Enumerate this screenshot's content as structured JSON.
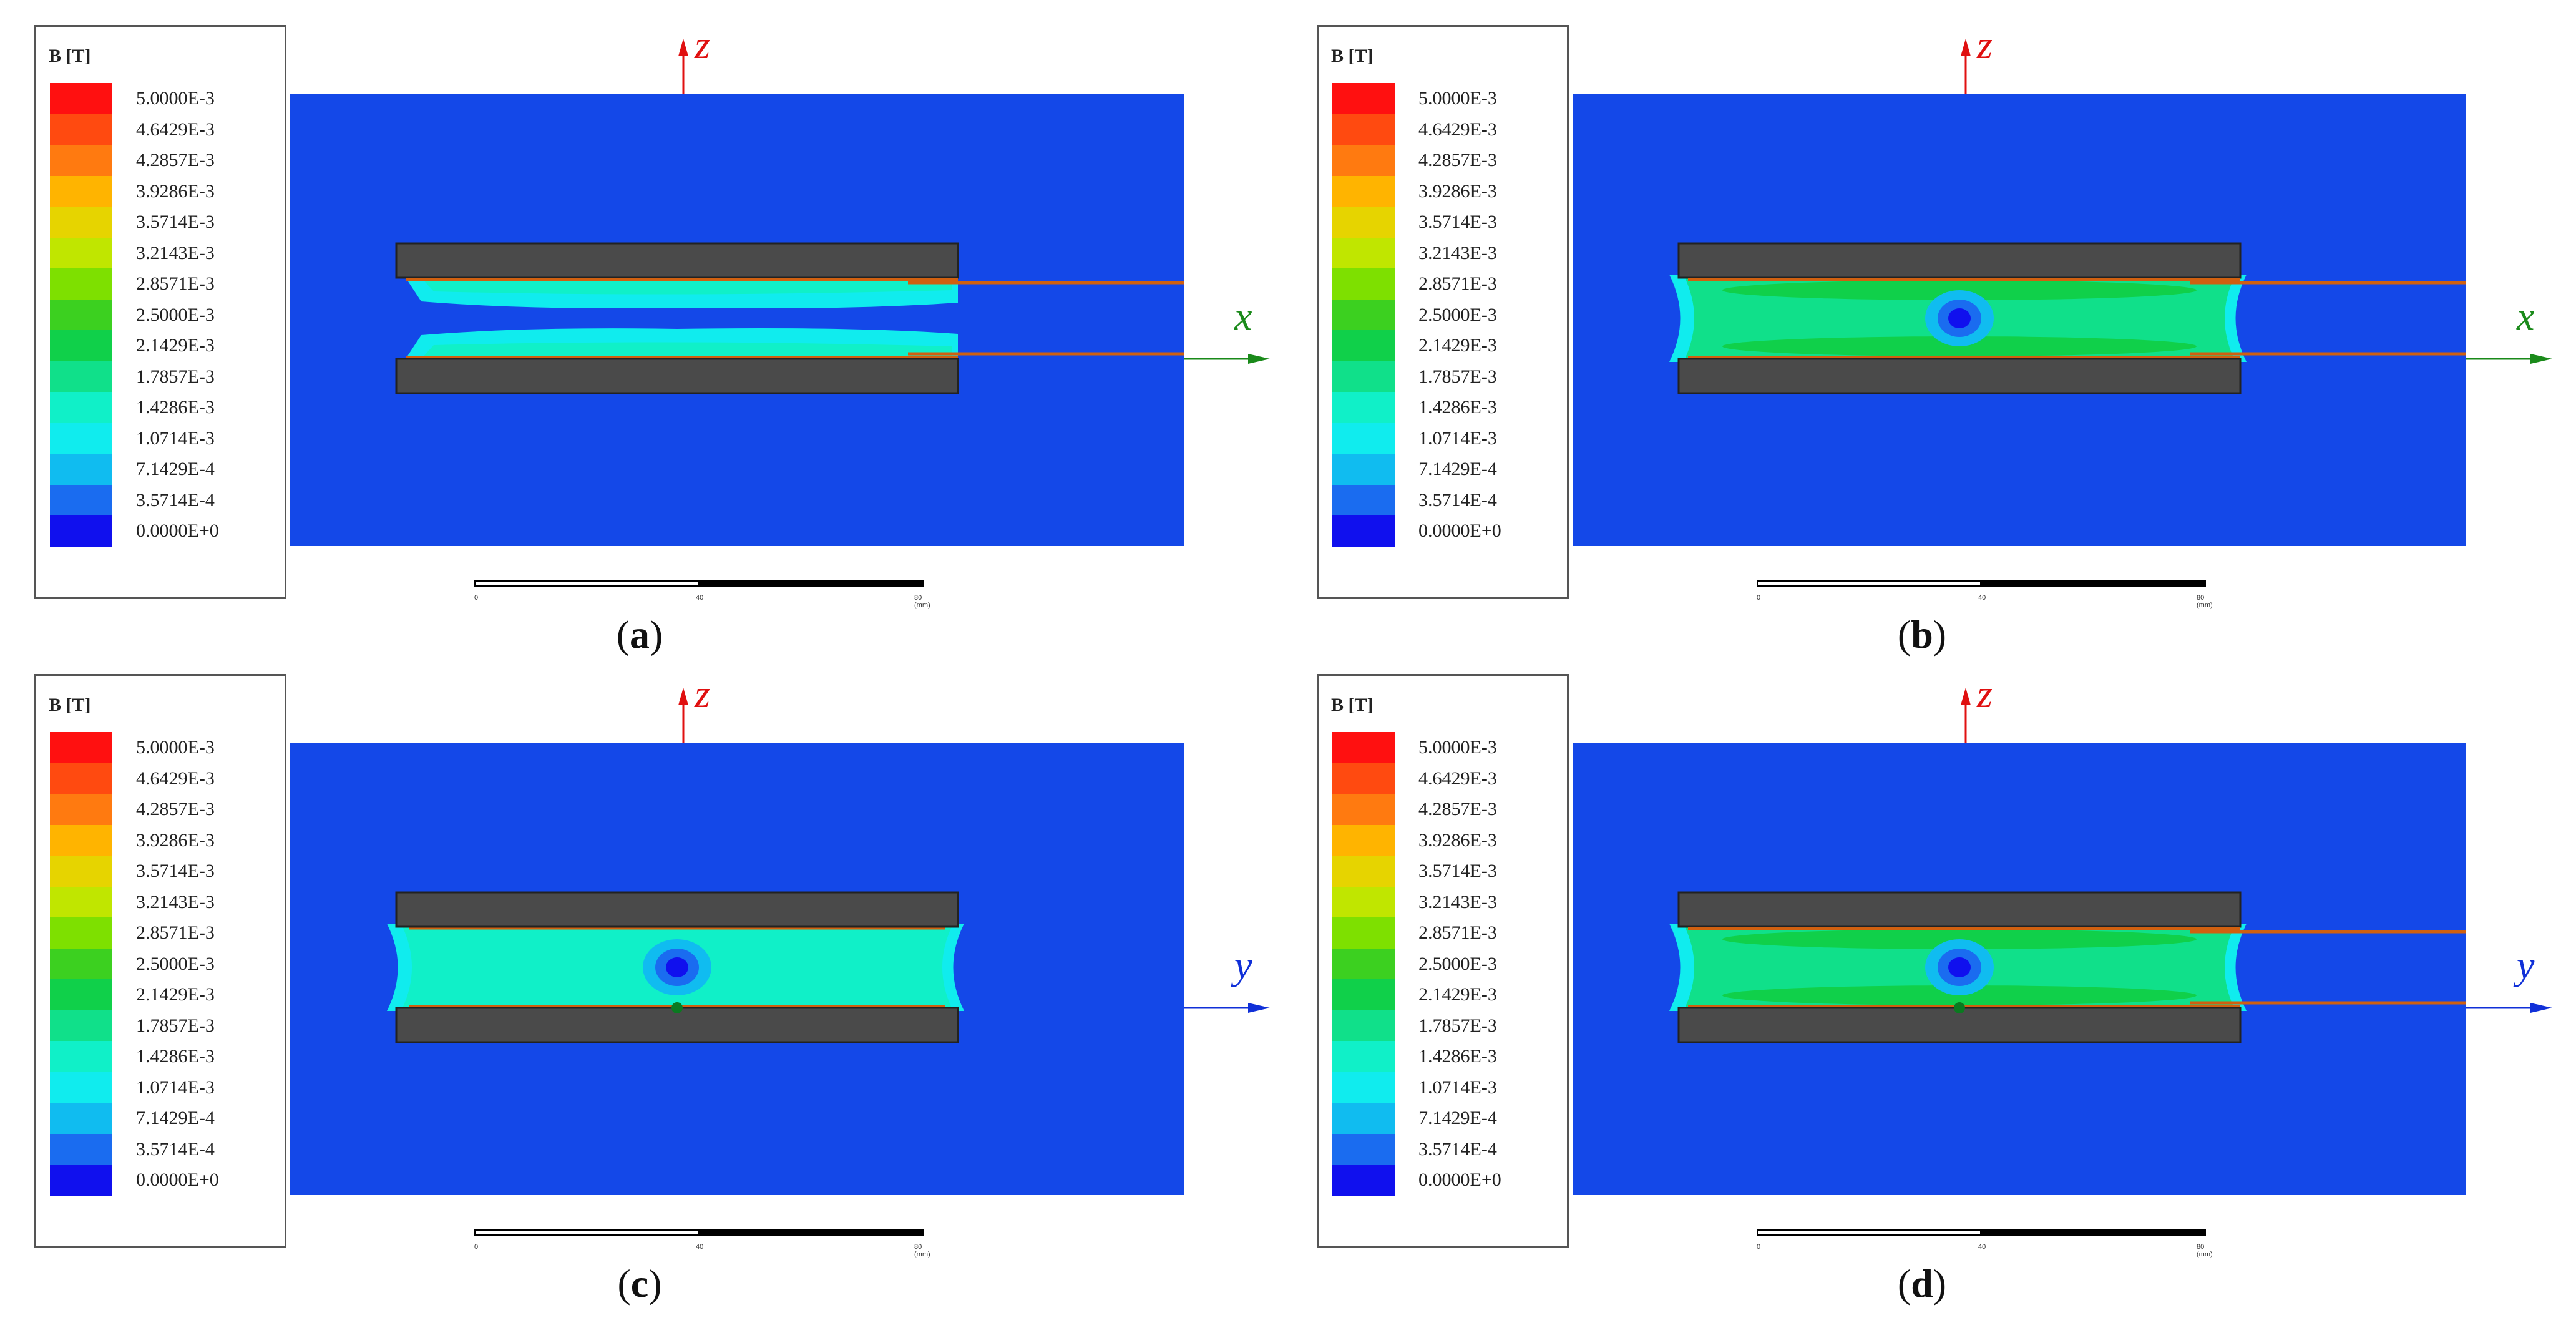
{
  "legend": {
    "title": "B [T]",
    "labels": [
      "5.0000E-3",
      "4.6429E-3",
      "4.2857E-3",
      "3.9286E-3",
      "3.5714E-3",
      "3.2143E-3",
      "2.8571E-3",
      "2.5000E-3",
      "2.1429E-3",
      "1.7857E-3",
      "1.4286E-3",
      "1.0714E-3",
      "7.1429E-4",
      "3.5714E-4",
      "0.0000E+0"
    ],
    "colors": [
      "#ff1010",
      "#ff4a10",
      "#ff7a10",
      "#ffb400",
      "#e6d400",
      "#c0e600",
      "#7ee000",
      "#3cd020",
      "#10d04a",
      "#10e08a",
      "#10f0c8",
      "#10ecee",
      "#10bcf0",
      "#1a6cf0",
      "#1010ee"
    ]
  },
  "scalebar": {
    "ticks": [
      "0",
      "40",
      "80 (mm)"
    ]
  },
  "panels": [
    {
      "caption_letter": "a",
      "horizontal_axis": "x",
      "vertical_axis": "z",
      "horizontal_axis_color": "#1a8a1a",
      "vertical_axis_color": "#e01010",
      "plot_bg": "#1448e8"
    },
    {
      "caption_letter": "b",
      "horizontal_axis": "x",
      "vertical_axis": "z",
      "horizontal_axis_color": "#1a8a1a",
      "vertical_axis_color": "#e01010",
      "plot_bg": "#1448e8"
    },
    {
      "caption_letter": "c",
      "horizontal_axis": "y",
      "vertical_axis": "z",
      "horizontal_axis_color": "#1030d8",
      "vertical_axis_color": "#e01010",
      "plot_bg": "#1448e8"
    },
    {
      "caption_letter": "d",
      "horizontal_axis": "y",
      "vertical_axis": "z",
      "horizontal_axis_color": "#1030d8",
      "vertical_axis_color": "#e01010",
      "plot_bg": "#1448e8"
    }
  ]
}
